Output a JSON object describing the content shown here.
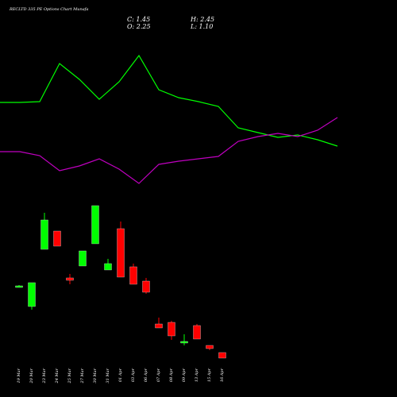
{
  "chart_data": [
    {
      "type": "candlestick",
      "title": "RECLTD 335 PE Options Chart Munafa",
      "header": [
        "C: 1.45",
        "H: 2.45",
        "O: 2.25",
        "L: 1.10"
      ],
      "categories": [
        "19 Mar",
        "20 Mar",
        "23 Mar",
        "24 Mar",
        "25 Mar",
        "27 Mar",
        "30 Mar",
        "31 Mar",
        "01 Apr",
        "03 Apr",
        "06 Apr",
        "07 Apr",
        "08 Apr",
        "09 Apr",
        "13 Apr",
        "15 Apr",
        "16 Apr"
      ],
      "open": [
        140,
        114,
        186,
        209,
        150,
        165,
        193,
        160,
        212,
        164,
        146,
        92,
        94,
        68,
        90,
        65,
        56
      ],
      "close": [
        140,
        144,
        223,
        190,
        147,
        184,
        241,
        168,
        151,
        142,
        132,
        87,
        77,
        70,
        73,
        61,
        49
      ],
      "high": [
        141,
        144,
        232,
        209,
        155,
        184,
        241,
        174,
        221,
        168,
        150,
        100,
        96,
        79,
        92,
        65,
        56
      ],
      "low": [
        139,
        110,
        186,
        190,
        142,
        165,
        193,
        160,
        151,
        142,
        130,
        87,
        72,
        65,
        73,
        59,
        49
      ],
      "up_color": "#00ff00",
      "down_color": "#ff0000",
      "ylim": [
        0,
        500
      ]
    },
    {
      "type": "line",
      "x": [
        0,
        1,
        2,
        3,
        4,
        5,
        6,
        7,
        8,
        9,
        10,
        11,
        12,
        13,
        14,
        15,
        16,
        17
      ],
      "xlim": [
        0,
        17
      ],
      "ylim": [
        0,
        500
      ],
      "series": [
        {
          "color": "#00ff00",
          "values": [
            371,
            371,
            372,
            420,
            400,
            375,
            397,
            430,
            387,
            377,
            372,
            366,
            339,
            333,
            327,
            330,
            324,
            316
          ]
        },
        {
          "color": "#c000c0",
          "values": [
            309,
            309,
            304,
            285,
            291,
            300,
            287,
            269,
            293,
            297,
            300,
            303,
            322,
            328,
            332,
            328,
            336,
            352
          ]
        }
      ]
    }
  ]
}
